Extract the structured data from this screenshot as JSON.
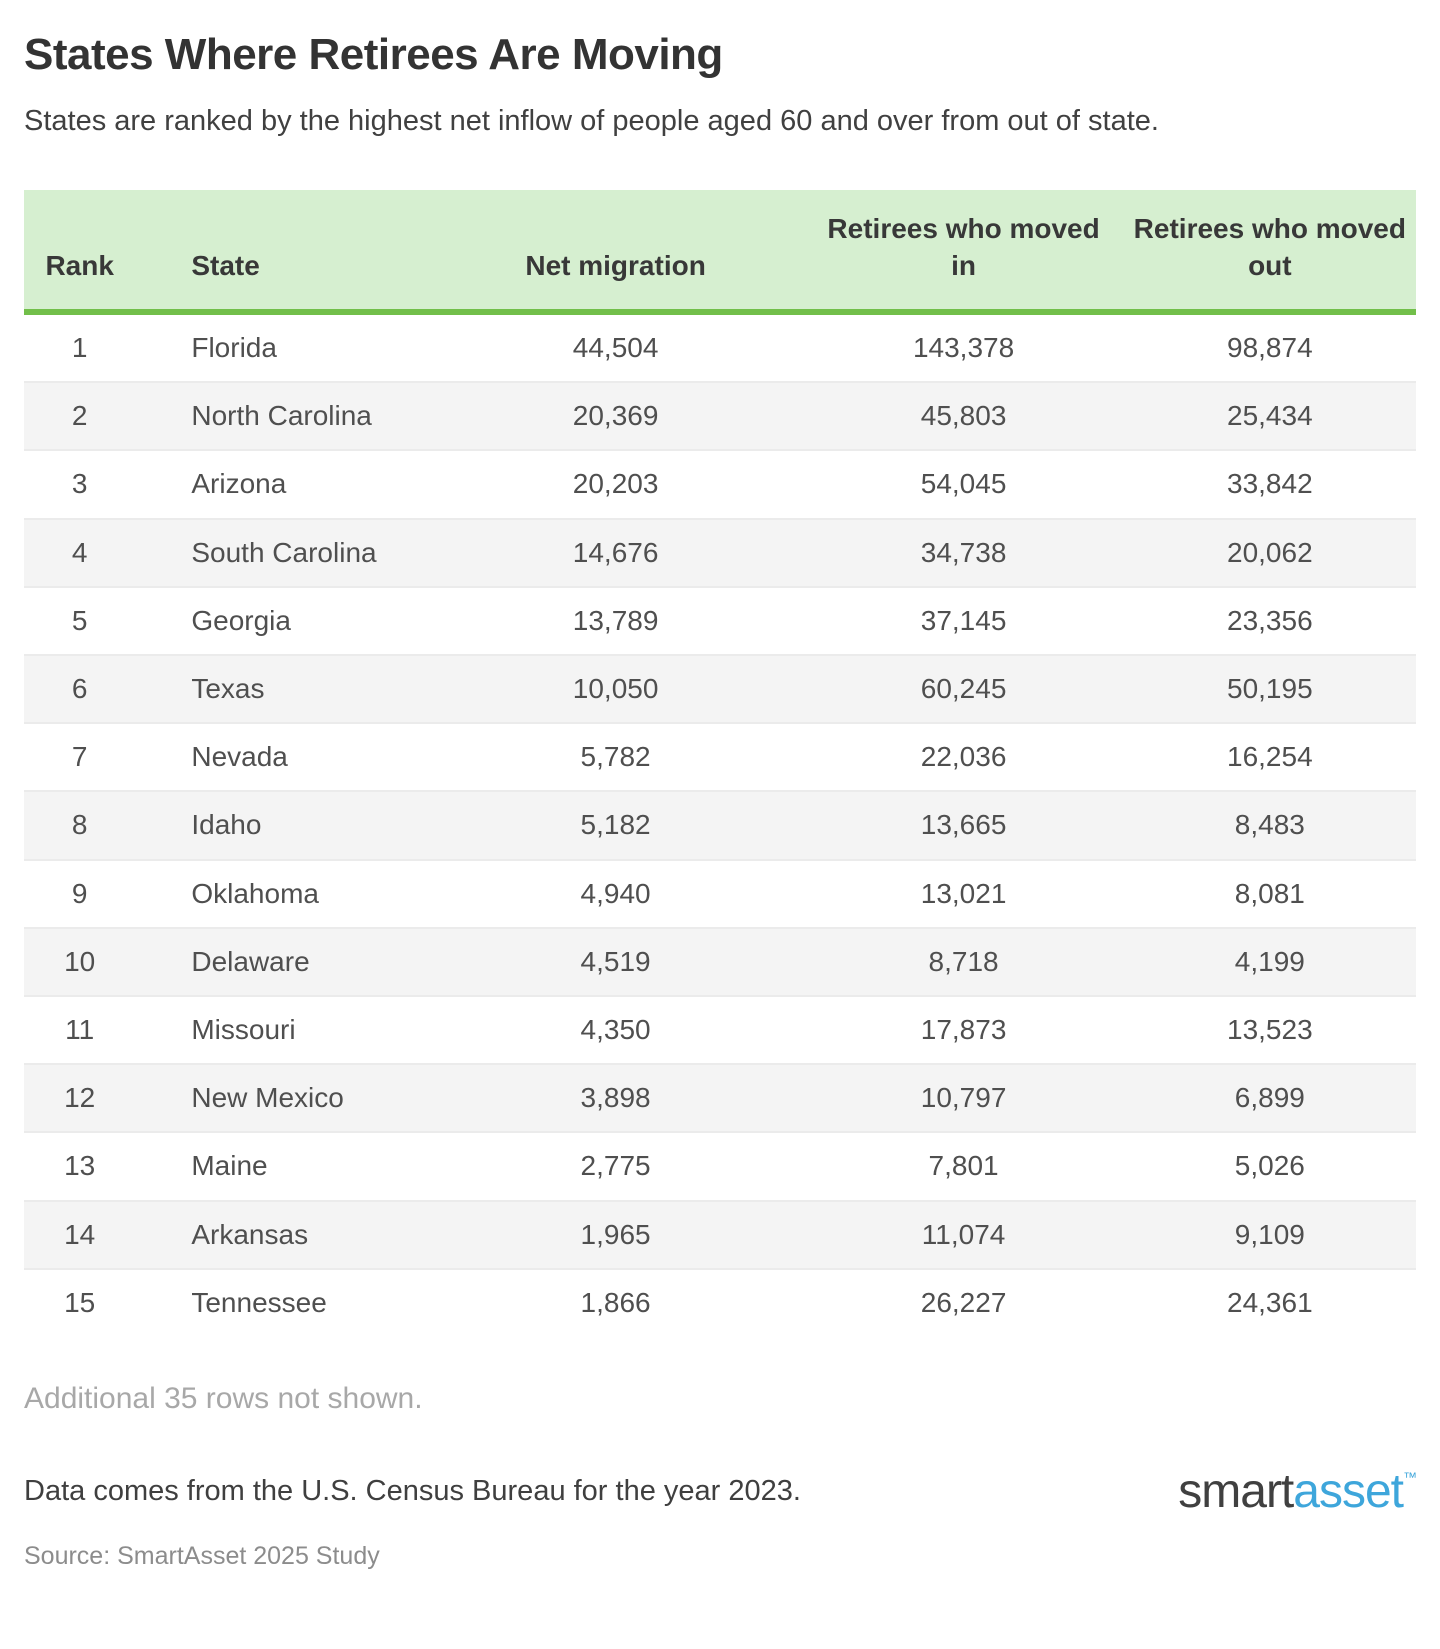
{
  "title": "States Where Retirees Are Moving",
  "subtitle": "States are ranked by the highest net inflow of people aged 60 and over from out of state.",
  "chart_data": {
    "type": "table",
    "title": "States Where Retirees Are Moving",
    "subtitle": "States are ranked by the highest net inflow of people aged 60 and over from out of state.",
    "columns": [
      "Rank",
      "State",
      "Net migration",
      "Retirees who moved in",
      "Retirees who moved out"
    ],
    "rows": [
      [
        "1",
        "Florida",
        "44,504",
        "143,378",
        "98,874"
      ],
      [
        "2",
        "North Carolina",
        "20,369",
        "45,803",
        "25,434"
      ],
      [
        "3",
        "Arizona",
        "20,203",
        "54,045",
        "33,842"
      ],
      [
        "4",
        "South Carolina",
        "14,676",
        "34,738",
        "20,062"
      ],
      [
        "5",
        "Georgia",
        "13,789",
        "37,145",
        "23,356"
      ],
      [
        "6",
        "Texas",
        "10,050",
        "60,245",
        "50,195"
      ],
      [
        "7",
        "Nevada",
        "5,782",
        "22,036",
        "16,254"
      ],
      [
        "8",
        "Idaho",
        "5,182",
        "13,665",
        "8,483"
      ],
      [
        "9",
        "Oklahoma",
        "4,940",
        "13,021",
        "8,081"
      ],
      [
        "10",
        "Delaware",
        "4,519",
        "8,718",
        "4,199"
      ],
      [
        "11",
        "Missouri",
        "4,350",
        "17,873",
        "13,523"
      ],
      [
        "12",
        "New Mexico",
        "3,898",
        "10,797",
        "6,899"
      ],
      [
        "13",
        "Maine",
        "2,775",
        "7,801",
        "5,026"
      ],
      [
        "14",
        "Arkansas",
        "1,965",
        "11,074",
        "9,109"
      ],
      [
        "15",
        "Tennessee",
        "1,866",
        "26,227",
        "24,361"
      ]
    ],
    "layout": {
      "striped_rows": true,
      "header_background": "#d6efd0",
      "header_border": "#72bf4a"
    }
  },
  "notes": {
    "additional": "Additional 35 rows not shown.",
    "data_source": "Data comes from the U.S. Census Bureau for the year 2023.",
    "source": "Source: SmartAsset 2025 Study"
  },
  "logo": {
    "part1": "smart",
    "part2": "asset",
    "trademark": "™"
  },
  "colors": {
    "header_background": "#d6efd0",
    "header_border_green": "#72bf4a",
    "row_stripe": "#f4f4f4",
    "logo_blue": "#3ea6db",
    "logo_dark": "#404040",
    "muted_gray": "#a8a8a8"
  }
}
